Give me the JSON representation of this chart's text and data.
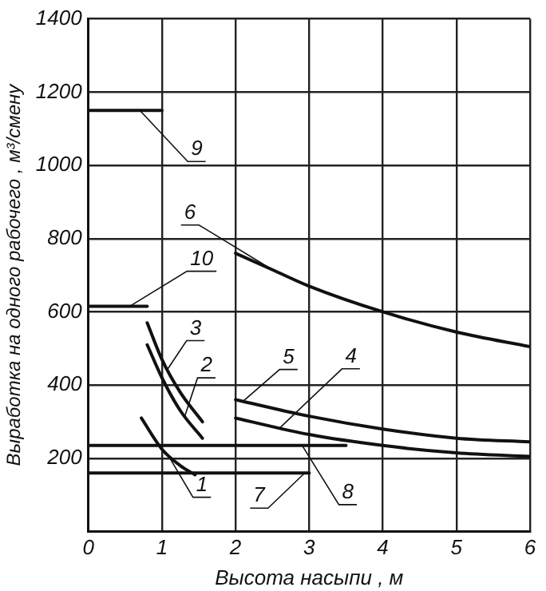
{
  "chart_data": {
    "type": "line",
    "xlabel": "Высота насыпи , м",
    "ylabel": "Выработка на одного рабочего , м³/смену",
    "xlim": [
      0,
      6
    ],
    "xticks": [
      0,
      1,
      2,
      3,
      4,
      5,
      6
    ],
    "ylim": [
      0,
      1400
    ],
    "yticks": [
      {
        "value": 0,
        "label": null
      },
      200,
      400,
      600,
      800,
      1000,
      1200,
      1400
    ],
    "grid": true,
    "marker": "none",
    "line_style": "solid",
    "series": [
      {
        "name": "9",
        "color": "#111111",
        "x": [
          0,
          1
        ],
        "values": [
          1150,
          1150
        ]
      },
      {
        "name": "10",
        "color": "#111111",
        "x": [
          0,
          0.8
        ],
        "values": [
          615,
          615
        ]
      },
      {
        "name": "6",
        "color": "#111111",
        "x": [
          2,
          2.5,
          3,
          4,
          5,
          6
        ],
        "values": [
          760,
          715,
          670,
          600,
          545,
          505
        ]
      },
      {
        "name": "3",
        "color": "#111111",
        "x": [
          0.8,
          1,
          1.25,
          1.55
        ],
        "values": [
          570,
          470,
          380,
          300
        ]
      },
      {
        "name": "2",
        "color": "#111111",
        "x": [
          0.8,
          1,
          1.25,
          1.55
        ],
        "values": [
          510,
          420,
          330,
          255
        ]
      },
      {
        "name": "1",
        "color": "#111111",
        "x": [
          0.72,
          1,
          1.25,
          1.45
        ],
        "values": [
          310,
          225,
          180,
          155
        ]
      },
      {
        "name": "7",
        "color": "#111111",
        "x": [
          0,
          3
        ],
        "values": [
          160,
          160
        ]
      },
      {
        "name": "8",
        "color": "#111111",
        "x": [
          0,
          3.5
        ],
        "values": [
          235,
          235
        ]
      },
      {
        "name": "5",
        "color": "#111111",
        "x": [
          2,
          3,
          4,
          5,
          6
        ],
        "values": [
          360,
          315,
          280,
          255,
          245
        ]
      },
      {
        "name": "4",
        "color": "#111111",
        "x": [
          2,
          3,
          4,
          5,
          6
        ],
        "values": [
          310,
          265,
          235,
          215,
          205
        ]
      }
    ]
  }
}
